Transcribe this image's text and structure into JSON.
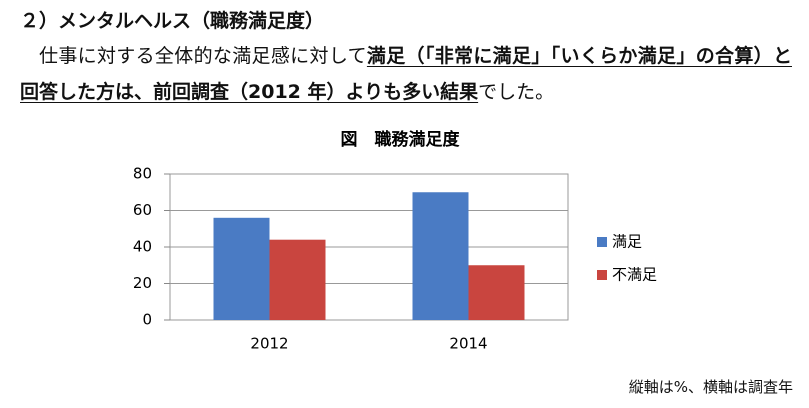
{
  "heading": "２）メンタルヘルス（職務満足度）",
  "paragraph": [
    {
      "text": "仕事に対する全体的な満足感に対して",
      "bold": false
    },
    {
      "text": "満足（「非常に満足」「いくらか満足」の合算）と回答した方は、前回調査（2012 年）よりも多い結果",
      "bold": true
    },
    {
      "text": "でした。",
      "bold": false
    }
  ],
  "chart_data": {
    "type": "bar",
    "title": "図　職務満足度",
    "categories": [
      "2012",
      "2014"
    ],
    "series": [
      {
        "name": "満足",
        "color": "#4a7bc4",
        "values": [
          56,
          70
        ]
      },
      {
        "name": "不満足",
        "color": "#c9453f",
        "values": [
          44,
          30
        ]
      }
    ],
    "ylim": [
      0,
      80
    ],
    "yticks": [
      0,
      20,
      40,
      60,
      80
    ],
    "grid": true,
    "legend": "right"
  },
  "footnote": "縦軸は%、横軸は調査年"
}
